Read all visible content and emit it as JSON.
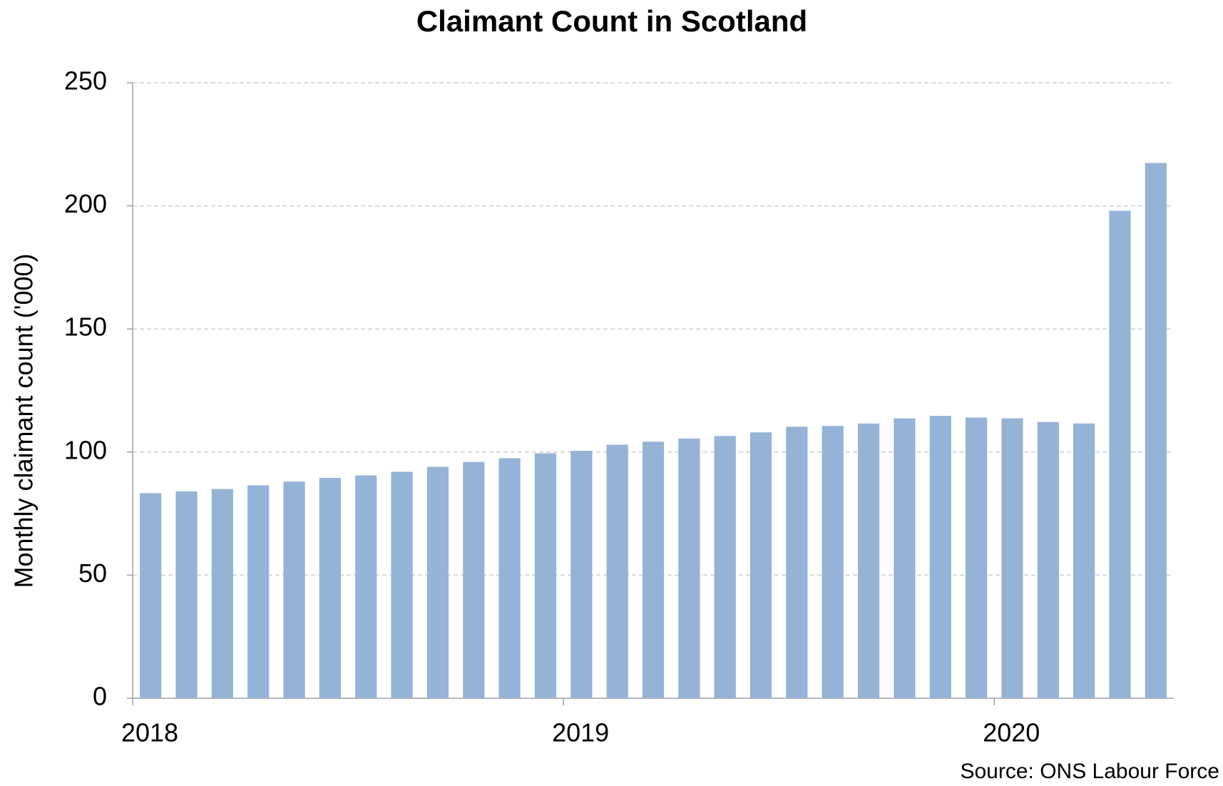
{
  "chart_data": {
    "type": "bar",
    "title": "Claimant Count in Scotland",
    "y_label": "Monthly claimant count ('000)",
    "source": "Source: ONS Labour Force",
    "categories": [
      "2018",
      null,
      null,
      null,
      null,
      null,
      null,
      null,
      null,
      null,
      null,
      null,
      "2019",
      null,
      null,
      null,
      null,
      null,
      null,
      null,
      null,
      null,
      null,
      null,
      "2020",
      null,
      null,
      null,
      null
    ],
    "values": [
      83.3,
      84,
      85,
      86.5,
      88,
      89.5,
      90.5,
      92,
      94,
      96,
      97.5,
      99.5,
      100.5,
      103,
      104.2,
      105.5,
      106.5,
      108,
      110.3,
      110.6,
      111.6,
      113.7,
      114.7,
      114,
      113.7,
      112.2,
      111.6,
      198,
      217.4
    ],
    "color": "#95b3d7",
    "ylim": [
      0,
      250
    ],
    "yticks": [
      0,
      50,
      100,
      150,
      200,
      250
    ],
    "grid": true
  }
}
